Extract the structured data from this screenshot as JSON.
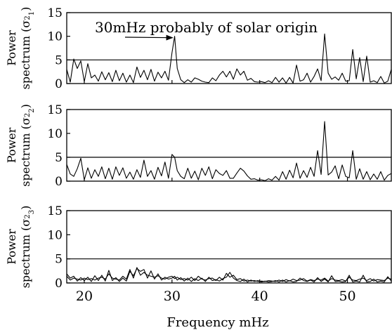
{
  "chart_data": {
    "type": "line",
    "xlabel": "Frequency mHz",
    "xlim": [
      18,
      55
    ],
    "x_ticks": [
      "20",
      "30",
      "40",
      "50"
    ],
    "annotation": {
      "text": "30mHz probably of solar origin",
      "points_to": [
        30.3,
        10
      ]
    },
    "panels": [
      {
        "ylabel_top": "Power",
        "ylabel_bottom": "spectrum (σ",
        "ylabel_sub": "1",
        "ylim": [
          0,
          15
        ],
        "y_ticks": [
          "0",
          "5",
          "10",
          "15"
        ],
        "threshold": 5,
        "series": [
          {
            "x": [
              18,
              18.4,
              18.8,
              19.2,
              19.6,
              20,
              20.4,
              20.8,
              21.2,
              21.6,
              22,
              22.4,
              22.8,
              23.2,
              23.6,
              24,
              24.4,
              24.8,
              25.2,
              25.6,
              26,
              26.4,
              26.8,
              27.2,
              27.6,
              28,
              28.4,
              28.8,
              29.2,
              29.6,
              30,
              30.3,
              30.6,
              31,
              31.4,
              31.8,
              32.2,
              32.6,
              33,
              33.4,
              33.8,
              34.2,
              34.6,
              35,
              35.4,
              35.8,
              36.2,
              36.6,
              37,
              37.4,
              37.8,
              38.2,
              38.6,
              39,
              39.4,
              39.8,
              40.2,
              40.6,
              41,
              41.4,
              41.8,
              42.2,
              42.6,
              43,
              43.4,
              43.8,
              44.2,
              44.6,
              45,
              45.4,
              45.8,
              46.2,
              46.6,
              47,
              47.4,
              47.8,
              48.2,
              48.6,
              49,
              49.4,
              49.8,
              50.2,
              50.6,
              51,
              51.4,
              51.8,
              52.2,
              52.6,
              53,
              53.4,
              53.8,
              54.2,
              54.6,
              55
            ],
            "y": [
              3,
              0.3,
              5.2,
              3.2,
              4.8,
              0.4,
              4.2,
              1.2,
              1.8,
              0.5,
              2.5,
              0.8,
              2.3,
              0.4,
              2.8,
              0.6,
              2.2,
              0.3,
              1.8,
              0.2,
              3.5,
              1.3,
              2.8,
              0.8,
              3.0,
              0.5,
              2.4,
              1.2,
              2.6,
              0.7,
              6.5,
              10,
              3.2,
              0.8,
              0.2,
              0.8,
              0.3,
              1.2,
              0.9,
              0.5,
              0.3,
              0.2,
              1.2,
              0.6,
              1.8,
              2.6,
              1.4,
              2.6,
              0.9,
              3.1,
              1.8,
              2.6,
              0.7,
              1.1,
              0.4,
              0.3,
              0.4,
              0.2,
              0.6,
              0.2,
              1.3,
              0.3,
              1.2,
              0.1,
              1.3,
              0.1,
              3.9,
              0.5,
              0.8,
              2.2,
              0.3,
              1.5,
              3.1,
              0.6,
              10.5,
              2.2,
              0.9,
              1.4,
              0.7,
              2.2,
              0.5,
              0.6,
              7.2,
              1.0,
              5.5,
              0.4,
              5.8,
              0.3,
              0.6,
              0.2,
              1.5,
              0.1,
              0.5,
              3.0
            ]
          }
        ]
      },
      {
        "ylabel_top": "Power",
        "ylabel_bottom": "spectrum (σ",
        "ylabel_sub": "2",
        "ylim": [
          0,
          15
        ],
        "y_ticks": [
          "0",
          "5",
          "10",
          "15"
        ],
        "threshold": 5,
        "series": [
          {
            "x": [
              18,
              18.4,
              18.8,
              19.2,
              19.6,
              20,
              20.4,
              20.8,
              21.2,
              21.6,
              22,
              22.4,
              22.8,
              23.2,
              23.6,
              24,
              24.4,
              24.8,
              25.2,
              25.6,
              26,
              26.4,
              26.8,
              27.2,
              27.6,
              28,
              28.4,
              28.8,
              29.2,
              29.6,
              30,
              30.3,
              30.6,
              31,
              31.4,
              31.8,
              32.2,
              32.6,
              33,
              33.4,
              33.8,
              34.2,
              34.6,
              35,
              35.4,
              35.8,
              36.2,
              36.6,
              37,
              37.4,
              37.8,
              38.2,
              38.6,
              39,
              39.4,
              39.8,
              40.2,
              40.6,
              41,
              41.4,
              41.8,
              42.2,
              42.6,
              43,
              43.4,
              43.8,
              44.2,
              44.6,
              45,
              45.4,
              45.8,
              46.2,
              46.6,
              47,
              47.4,
              47.8,
              48.2,
              48.6,
              49,
              49.4,
              49.8,
              50.2,
              50.6,
              51,
              51.4,
              51.8,
              52.2,
              52.6,
              53,
              53.4,
              53.8,
              54.2,
              54.6,
              55
            ],
            "y": [
              3.5,
              1.5,
              1.0,
              2.6,
              4.8,
              0.3,
              2.8,
              0.6,
              2.4,
              1.0,
              3.0,
              0.5,
              2.7,
              0.4,
              3.0,
              1.2,
              2.8,
              0.6,
              1.9,
              0.4,
              2.4,
              0.8,
              4.4,
              1.0,
              2.2,
              0.4,
              2.9,
              1.1,
              4.0,
              0.6,
              5.6,
              5.0,
              2.2,
              1.0,
              0.5,
              2.7,
              0.6,
              2.1,
              0.3,
              2.7,
              1.2,
              3.0,
              0.5,
              2.4,
              1.6,
              1.2,
              2.2,
              0.6,
              0.6,
              1.7,
              2.7,
              2.1,
              1.1,
              0.4,
              0.5,
              0.2,
              0.3,
              0.1,
              0.5,
              0.2,
              1.0,
              0.2,
              2.0,
              0.4,
              2.3,
              0.7,
              3.8,
              0.6,
              2.2,
              0.8,
              2.9,
              1.0,
              6.4,
              1.4,
              12.5,
              1.3,
              1.9,
              3.2,
              0.5,
              3.4,
              1.0,
              0.7,
              6.4,
              0.4,
              2.6,
              0.4,
              2.0,
              0.3,
              1.5,
              0.4,
              2.0,
              0.2,
              1.2,
              1.6
            ]
          }
        ]
      },
      {
        "ylabel_top": "Power",
        "ylabel_bottom": "spectrum (σ",
        "ylabel_sub": "3",
        "ylim": [
          0,
          15
        ],
        "y_ticks": [
          "0",
          "5",
          "10",
          "15"
        ],
        "threshold": 5,
        "series": [
          {
            "x": [
              18,
              18.4,
              18.8,
              19.2,
              19.6,
              20,
              20.4,
              20.8,
              21.2,
              21.6,
              22,
              22.4,
              22.8,
              23.2,
              23.6,
              24,
              24.4,
              24.8,
              25.2,
              25.6,
              26,
              26.4,
              26.8,
              27.2,
              27.6,
              28,
              28.4,
              28.8,
              29.2,
              29.6,
              30,
              30.3,
              30.6,
              31,
              31.4,
              31.8,
              32.2,
              32.6,
              33,
              33.4,
              33.8,
              34.2,
              34.6,
              35,
              35.4,
              35.8,
              36.2,
              36.6,
              37,
              37.4,
              37.8,
              38.2,
              38.6,
              39,
              39.4,
              39.8,
              40.2,
              40.6,
              41,
              41.4,
              41.8,
              42.2,
              42.6,
              43,
              43.4,
              43.8,
              44.2,
              44.6,
              45,
              45.4,
              45.8,
              46.2,
              46.6,
              47,
              47.4,
              47.8,
              48.2,
              48.6,
              49,
              49.4,
              49.8,
              50.2,
              50.6,
              51,
              51.4,
              51.8,
              52.2,
              52.6,
              53,
              53.4,
              53.8,
              54.2,
              54.6,
              55
            ],
            "y": [
              1.9,
              1.0,
              1.4,
              0.4,
              1.1,
              0.5,
              1.2,
              0.3,
              1.5,
              0.5,
              1.6,
              0.4,
              2.6,
              0.5,
              1.1,
              0.3,
              1.0,
              0.4,
              2.4,
              1.5,
              3.0,
              2.4,
              2.8,
              1.0,
              2.5,
              0.8,
              1.9,
              0.6,
              1.2,
              0.8,
              1.0,
              1.4,
              0.6,
              1.1,
              0.4,
              1.0,
              0.3,
              0.9,
              0.5,
              1.0,
              0.3,
              1.2,
              0.5,
              0.7,
              0.4,
              0.9,
              1.2,
              2.2,
              1.0,
              0.5,
              0.3,
              0.8,
              0.2,
              0.6,
              0.3,
              0.5,
              0.2,
              0.4,
              0.2,
              0.3,
              0.5,
              0.2,
              0.6,
              0.2,
              0.5,
              0.2,
              0.3,
              1.0,
              0.5,
              0.3,
              0.6,
              0.2,
              1.1,
              0.3,
              0.8,
              0.2,
              1.5,
              0.3,
              0.4,
              0.2,
              0.3,
              1.6,
              0.2,
              0.4,
              0.2,
              1.6,
              0.2,
              0.3,
              0.8,
              0.2,
              0.4,
              0.2,
              1.3,
              0.4
            ]
          },
          {
            "x": [
              18,
              18.4,
              18.8,
              19.2,
              19.6,
              20,
              20.4,
              20.8,
              21.2,
              21.6,
              22,
              22.4,
              22.8,
              23.2,
              23.6,
              24,
              24.4,
              24.8,
              25.2,
              25.6,
              26,
              26.4,
              26.8,
              27.2,
              27.6,
              28,
              28.4,
              28.8,
              29.2,
              29.6,
              30,
              30.3,
              30.6,
              31,
              31.4,
              31.8,
              32.2,
              32.6,
              33,
              33.4,
              33.8,
              34.2,
              34.6,
              35,
              35.4,
              35.8,
              36.2,
              36.6,
              37,
              37.4,
              37.8,
              38.2,
              38.6,
              39,
              39.4,
              39.8,
              40.2,
              40.6,
              41,
              41.4,
              41.8,
              42.2,
              42.6,
              43,
              43.4,
              43.8,
              44.2,
              44.6,
              45,
              45.4,
              45.8,
              46.2,
              46.6,
              47,
              47.4,
              47.8,
              48.2,
              48.6,
              49,
              49.4,
              49.8,
              50.2,
              50.6,
              51,
              51.4,
              51.8,
              52.2,
              52.6,
              53,
              53.4,
              53.8,
              54.2,
              54.6,
              55
            ],
            "y": [
              1.4,
              0.6,
              1.0,
              0.8,
              0.6,
              1.0,
              0.7,
              0.9,
              0.6,
              1.0,
              1.2,
              0.8,
              1.9,
              1.0,
              0.8,
              0.6,
              1.4,
              0.8,
              2.8,
              1.0,
              3.2,
              1.6,
              2.2,
              1.6,
              1.4,
              1.2,
              1.5,
              1.0,
              0.8,
              1.2,
              1.4,
              0.9,
              1.2,
              0.7,
              0.9,
              0.6,
              1.2,
              0.5,
              1.4,
              0.8,
              0.6,
              0.9,
              1.0,
              0.5,
              1.2,
              0.6,
              2.0,
              1.2,
              1.6,
              0.7,
              0.9,
              0.4,
              0.6,
              0.4,
              0.5,
              0.3,
              0.4,
              0.3,
              0.5,
              0.4,
              0.3,
              0.6,
              0.3,
              0.7,
              0.4,
              0.8,
              0.5,
              0.6,
              0.9,
              0.4,
              0.7,
              0.5,
              0.8,
              0.6,
              1.0,
              0.4,
              0.9,
              0.6,
              0.5,
              0.7,
              0.4,
              1.2,
              0.6,
              0.5,
              0.8,
              1.0,
              0.5,
              0.9,
              0.4,
              0.7,
              0.6,
              0.5,
              1.0,
              0.8
            ]
          }
        ]
      }
    ]
  }
}
